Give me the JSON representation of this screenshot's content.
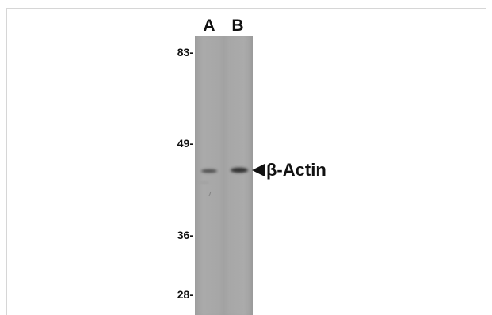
{
  "blot": {
    "lanes": [
      {
        "label": "A",
        "band_intensity": "light"
      },
      {
        "label": "B",
        "band_intensity": "strong"
      }
    ],
    "markers": [
      "83-",
      "49-",
      "36-",
      "28-"
    ],
    "target": {
      "label": "β-Actin",
      "pointer_icon": "left-triangle-arrow-icon"
    }
  },
  "colors": {
    "background": "#ffffff",
    "membrane": "#a4a4a4",
    "band": "#2e2e2e",
    "text": "#111111"
  }
}
